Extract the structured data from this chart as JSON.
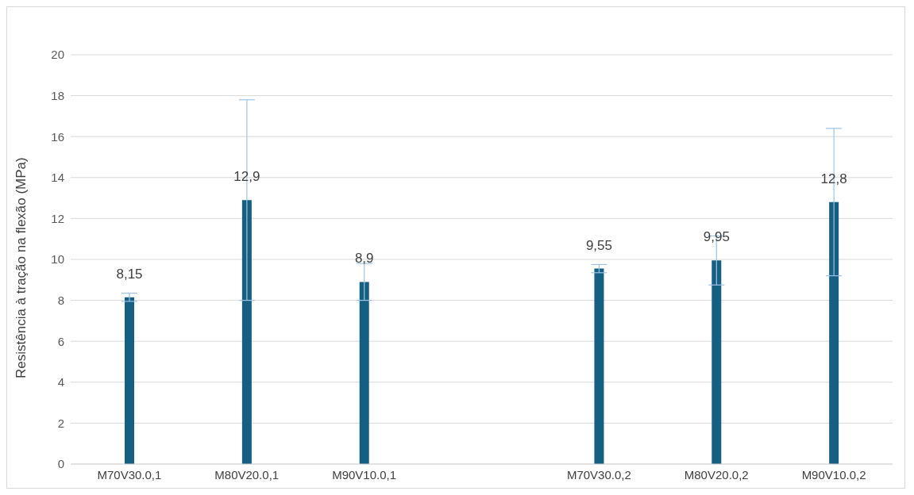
{
  "chart_data": {
    "type": "bar",
    "ylabel": "Resistência à tração na flexão (MPa)",
    "categories": [
      "M70V30.0,1",
      "M80V20.0,1",
      "M90V10.0,1",
      null,
      "M70V30.0,2",
      "M80V20.0,2",
      "M90V10.0,2"
    ],
    "values": [
      8.15,
      12.9,
      8.9,
      null,
      9.55,
      9.95,
      12.8
    ],
    "errors": [
      0.2,
      4.9,
      0.9,
      null,
      0.2,
      1.2,
      3.6
    ],
    "value_labels": [
      "8,15",
      "12,9",
      "8,9",
      null,
      "9,55",
      "9,95",
      "12,8"
    ],
    "color": "#155f83",
    "ylim": [
      0,
      20
    ],
    "yticks": [
      0,
      2,
      4,
      6,
      8,
      10,
      12,
      14,
      16,
      18,
      20
    ],
    "grid": "y"
  }
}
